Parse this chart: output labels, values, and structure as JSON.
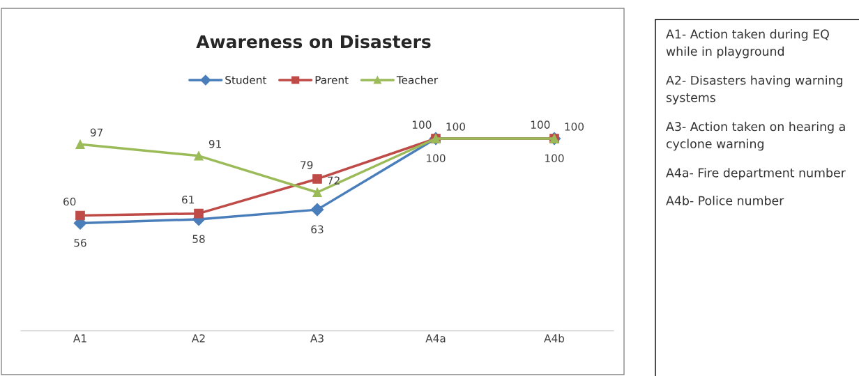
{
  "chart_data": {
    "type": "line",
    "title": "Awareness on Disasters",
    "categories": [
      "A1",
      "A2",
      "A3",
      "A4a",
      "A4b"
    ],
    "series": [
      {
        "name": "Student",
        "color": "#4a7ebb",
        "marker": "diamond",
        "values": [
          56,
          58,
          63,
          100,
          100
        ]
      },
      {
        "name": "Parent",
        "color": "#be4b48",
        "marker": "square",
        "values": [
          60,
          61,
          79,
          100,
          100
        ]
      },
      {
        "name": "Teacher",
        "color": "#9bbb59",
        "marker": "triangle",
        "values": [
          97,
          91,
          72,
          100,
          100
        ]
      }
    ],
    "tick_labels": "x",
    "data_labels": true,
    "legend": "top",
    "grid": false,
    "annotations": [
      "A1- Action taken during EQ while in playground",
      "A2- Disasters having warning systems",
      "A3- Action taken on hearing a cyclone warning",
      "A4a- Fire department number",
      "A4b- Police number"
    ]
  }
}
